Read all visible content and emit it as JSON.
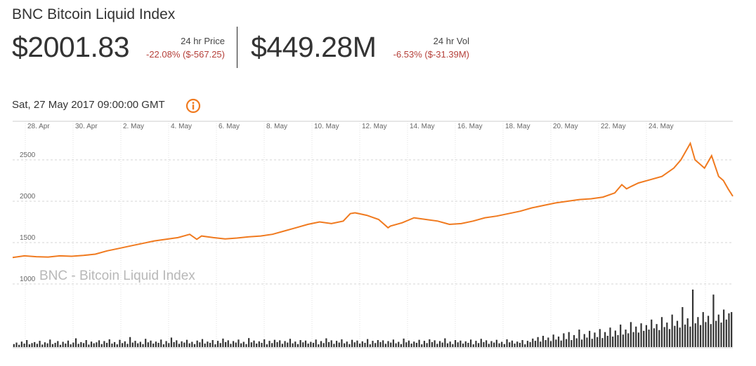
{
  "header": {
    "title": "BNC Bitcoin Liquid Index",
    "price": {
      "value": "$2001.83",
      "label": "24 hr Price",
      "change": "-22.08% ($-567.25)"
    },
    "volume": {
      "value": "$449.28M",
      "label": "24 hr Vol",
      "change": "-6.53% ($-31.39M)"
    },
    "timestamp": "Sat, 27 May 2017 09:00:00 GMT",
    "info_icon": "info-icon"
  },
  "colors": {
    "line": "#f07a1f",
    "volume": "#333333",
    "negative": "#b5403a",
    "grid": "#d6d6d6"
  },
  "chart_data": {
    "type": "line",
    "title": "",
    "watermark": "BNC - Bitcoin Liquid Index",
    "x_tick_labels": [
      "28. Apr",
      "30. Apr",
      "2. May",
      "4. May",
      "6. May",
      "8. May",
      "10. May",
      "12. May",
      "14. May",
      "16. May",
      "18. May",
      "20. May",
      "22. May",
      "24. May"
    ],
    "y_tick_labels": [
      "2500",
      "2000",
      "1500",
      "1000"
    ],
    "y_ticks": [
      2500,
      2000,
      1500,
      1000
    ],
    "ylim": [
      1000,
      2760
    ],
    "xlim": [
      0,
      30.5
    ],
    "grid": true,
    "series": [
      {
        "x": [
          0,
          0.5,
          1,
          1.5,
          2,
          2.5,
          3,
          3.5,
          4,
          4.5,
          5,
          5.5,
          6,
          6.5,
          7,
          7.5,
          7.8,
          8,
          8.5,
          9,
          9.5,
          10,
          10.5,
          11,
          11.5,
          12,
          12.5,
          13,
          13.5,
          14,
          14.3,
          14.5,
          15,
          15.5,
          15.9,
          16,
          16.5,
          17,
          17.5,
          18,
          18.5,
          19,
          19.5,
          20,
          20.5,
          21,
          21.5,
          22,
          22.5,
          23,
          23.5,
          24,
          24.5,
          25,
          25.5,
          25.8,
          26,
          26.2,
          26.5,
          27,
          27.5,
          28,
          28.3,
          28.5,
          28.7,
          28.9,
          29.1,
          29.3,
          29.6,
          29.9,
          30.1,
          30.3,
          30.5
        ],
        "y": [
          1320,
          1340,
          1330,
          1325,
          1340,
          1335,
          1345,
          1360,
          1400,
          1430,
          1460,
          1490,
          1520,
          1540,
          1560,
          1600,
          1540,
          1580,
          1560,
          1545,
          1555,
          1570,
          1580,
          1600,
          1640,
          1680,
          1720,
          1750,
          1730,
          1760,
          1850,
          1860,
          1830,
          1780,
          1680,
          1700,
          1740,
          1800,
          1780,
          1760,
          1720,
          1730,
          1760,
          1800,
          1820,
          1850,
          1880,
          1920,
          1950,
          1980,
          2000,
          2020,
          2030,
          2050,
          2100,
          2200,
          2150,
          2180,
          2220,
          2260,
          2300,
          2400,
          2500,
          2600,
          2700,
          2500,
          2450,
          2400,
          2550,
          2300,
          2250,
          2150,
          2060
        ]
      }
    ],
    "volume_bars": [
      12,
      18,
      9,
      22,
      14,
      28,
      11,
      16,
      20,
      13,
      25,
      10,
      19,
      15,
      30,
      12,
      17,
      24,
      9,
      21,
      14,
      26,
      11,
      18,
      35,
      13,
      20,
      16,
      28,
      10,
      22,
      15,
      19,
      27,
      12,
      24,
      17,
      31,
      14,
      20,
      11,
      29,
      16,
      23,
      13,
      40,
      18,
      25,
      15,
      21,
      12,
      33,
      19,
      26,
      14,
      22,
      17,
      30,
      11,
      24,
      16,
      38,
      20,
      27,
      13,
      23,
      18,
      29,
      15,
      21,
      12,
      26,
      19,
      32,
      14,
      22,
      17,
      28,
      11,
      25,
      16,
      34,
      20,
      27,
      13,
      24,
      18,
      30,
      15,
      21,
      12,
      36,
      19,
      26,
      14,
      23,
      17,
      31,
      11,
      25,
      16,
      29,
      20,
      27,
      13,
      24,
      18,
      33,
      15,
      22,
      12,
      28,
      19,
      26,
      14,
      21,
      17,
      30,
      11,
      24,
      16,
      35,
      20,
      27,
      13,
      25,
      18,
      31,
      15,
      22,
      12,
      29,
      19,
      26,
      14,
      23,
      17,
      32,
      11,
      25,
      16,
      28,
      20,
      27,
      13,
      24,
      18,
      30,
      15,
      21,
      12,
      34,
      19,
      26,
      14,
      22,
      17,
      29,
      11,
      25,
      16,
      31,
      20,
      27,
      13,
      24,
      18,
      35,
      15,
      22,
      12,
      28,
      19,
      26,
      14,
      23,
      17,
      30,
      11,
      25,
      16,
      33,
      20,
      27,
      13,
      24,
      18,
      29,
      15,
      21,
      12,
      31,
      19,
      26,
      14,
      22,
      17,
      28,
      11,
      25,
      20,
      34,
      25,
      40,
      22,
      45,
      28,
      38,
      24,
      50,
      30,
      42,
      26,
      55,
      32,
      60,
      28,
      48,
      35,
      70,
      30,
      52,
      38,
      65,
      33,
      58,
      40,
      72,
      36,
      60,
      45,
      78,
      42,
      66,
      48,
      90,
      50,
      70,
      55,
      100,
      60,
      82,
      58,
      95,
      65,
      88,
      70,
      110,
      75,
      92,
      68,
      120,
      80,
      98,
      72,
      130,
      85,
      105,
      78,
      160,
      90,
      115,
      82,
      230,
      95,
      120,
      88,
      140,
      100,
      125,
      92,
      210,
      105,
      130,
      98,
      150,
      110,
      135,
      140
    ]
  }
}
